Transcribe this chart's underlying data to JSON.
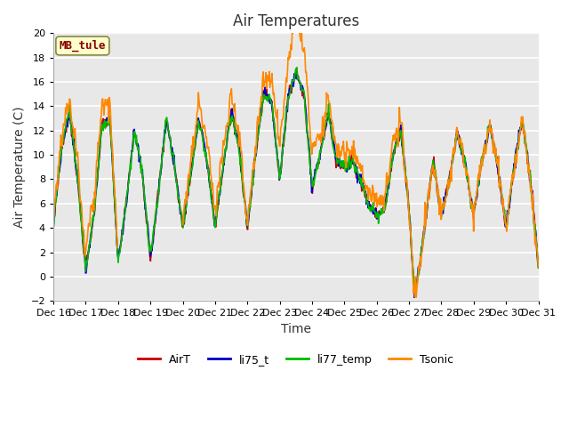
{
  "title": "Air Temperatures",
  "xlabel": "Time",
  "ylabel": "Air Temperature (C)",
  "ylim": [
    -2,
    20
  ],
  "xlim": [
    0,
    360
  ],
  "x_tick_labels": [
    "Dec 16",
    "Dec 17",
    "Dec 18",
    "Dec 19",
    "Dec 20",
    "Dec 21",
    "Dec 22",
    "Dec 23",
    "Dec 24",
    "Dec 25",
    "Dec 26",
    "Dec 27",
    "Dec 28",
    "Dec 29",
    "Dec 30",
    "Dec 31"
  ],
  "x_tick_positions": [
    0,
    24,
    48,
    72,
    96,
    120,
    144,
    168,
    192,
    216,
    240,
    264,
    288,
    312,
    336,
    360
  ],
  "series_colors": {
    "AirT": "#cc0000",
    "li75_t": "#0000cc",
    "li77_temp": "#00bb00",
    "Tsonic": "#ff8800"
  },
  "series_linewidth": 1.2,
  "legend_labels": [
    "AirT",
    "li75_t",
    "li77_temp",
    "Tsonic"
  ],
  "station_label": "MB_tule",
  "station_label_color": "#880000",
  "station_box_facecolor": "#ffffcc",
  "station_box_edgecolor": "#888844",
  "figure_bg_color": "#ffffff",
  "plot_bg_color": "#e8e8e8",
  "grid_color": "#ffffff",
  "title_fontsize": 12,
  "axis_label_fontsize": 10,
  "tick_fontsize": 8,
  "legend_fontsize": 9,
  "figsize": [
    6.4,
    4.8
  ],
  "dpi": 100
}
